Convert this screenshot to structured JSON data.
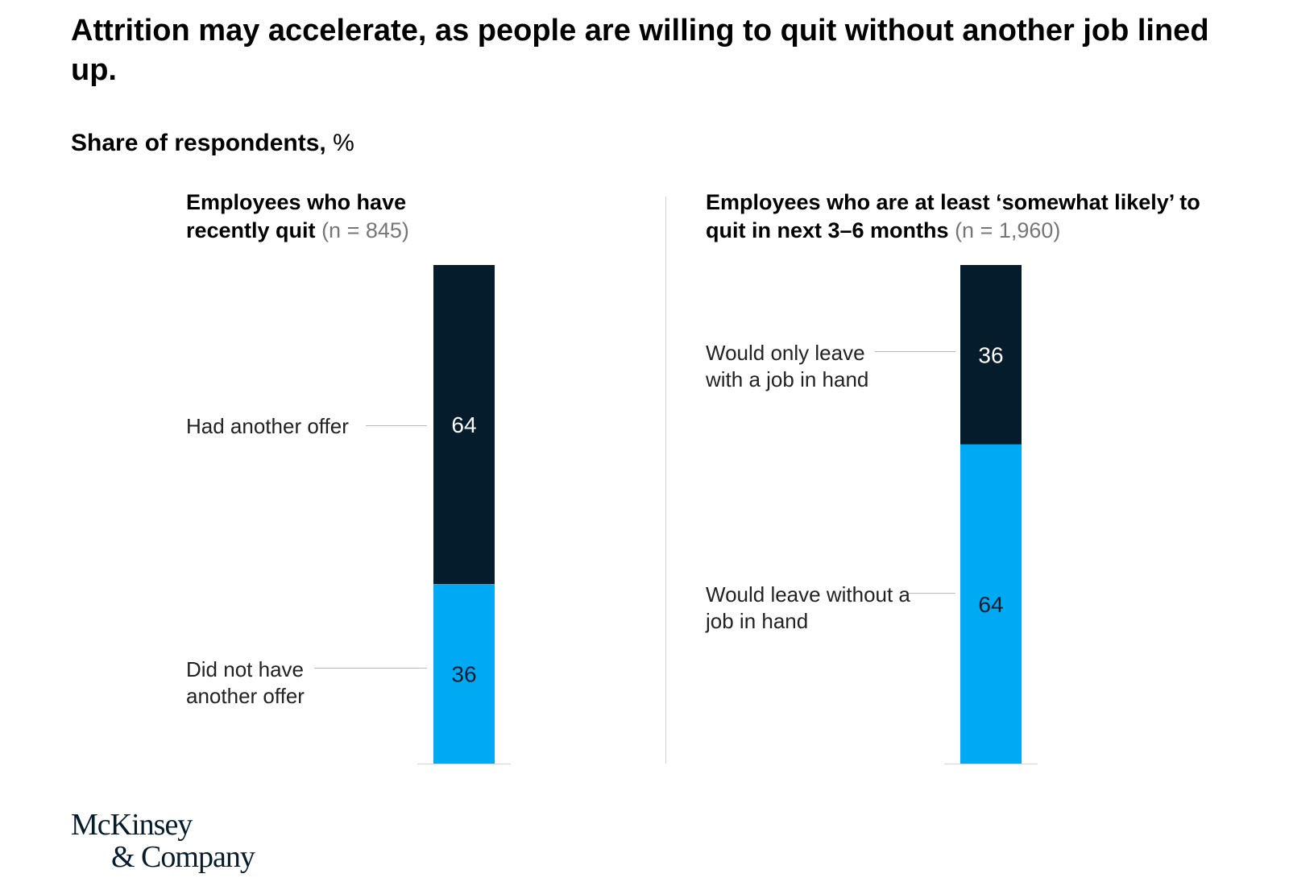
{
  "title": "Attrition may accelerate, as people are willing to quit without another job lined up.",
  "subtitle": {
    "main": "Share of respondents,",
    "unit": "%"
  },
  "colors": {
    "dark": "#051c2c",
    "light": "#00a9f4"
  },
  "logo": {
    "line1": "McKinsey",
    "line2": "& Company"
  },
  "chart_data": {
    "type": "bar",
    "stacked": true,
    "ylim": [
      0,
      100
    ],
    "panels": [
      {
        "title": "Employees who have recently quit",
        "n": "(n = 845)",
        "segments": [
          {
            "label": "Had another offer",
            "value": 64,
            "value_label": "64",
            "color": "#051c2c"
          },
          {
            "label": "Did not have another offer",
            "value": 36,
            "value_label": "36",
            "color": "#00a9f4"
          }
        ]
      },
      {
        "title": "Employees who are at least ‘somewhat likely’ to quit in next 3–6 months",
        "n": "(n = 1,960)",
        "segments": [
          {
            "label": "Would only leave with a job in hand",
            "value": 36,
            "value_label": "36",
            "color": "#051c2c"
          },
          {
            "label": "Would leave without a job in hand",
            "value": 64,
            "value_label": "64",
            "color": "#00a9f4"
          }
        ]
      }
    ]
  }
}
